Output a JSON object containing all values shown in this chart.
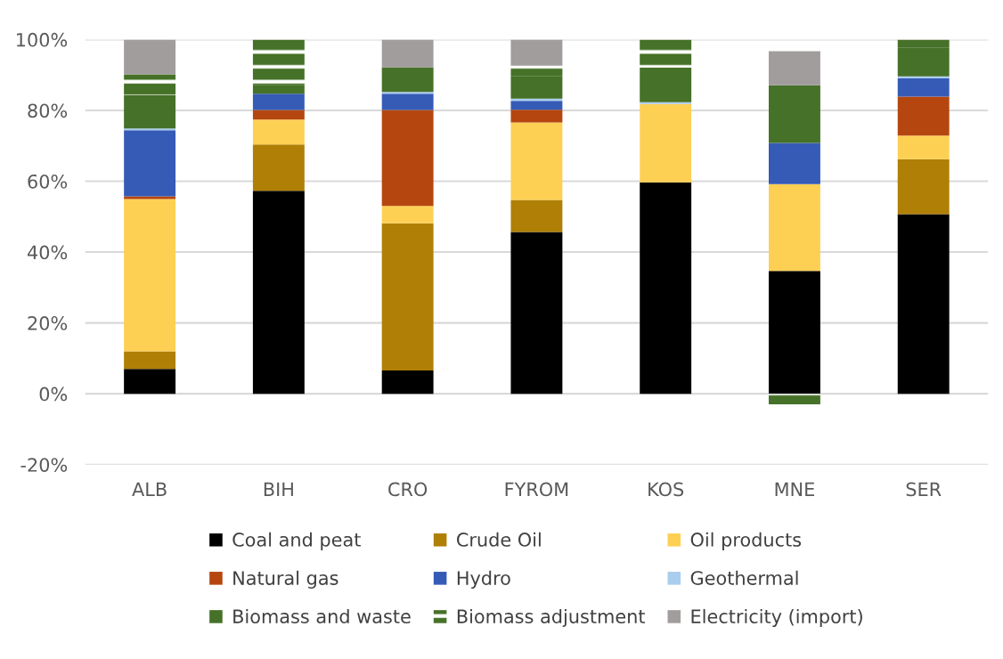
{
  "chart_data": {
    "type": "bar",
    "stacked": true,
    "categories": [
      "ALB",
      "BIH",
      "CRO",
      "FYROM",
      "KOS",
      "MNE",
      "SER"
    ],
    "ylim": [
      -20,
      100
    ],
    "yticks": [
      {
        "value": -20,
        "label": "-20%"
      },
      {
        "value": 0,
        "label": "0%"
      },
      {
        "value": 20,
        "label": "20%"
      },
      {
        "value": 40,
        "label": "40%"
      },
      {
        "value": 60,
        "label": "60%"
      },
      {
        "value": 80,
        "label": "80%"
      },
      {
        "value": 100,
        "label": "100%"
      }
    ],
    "grid": "y",
    "legend": "bottom",
    "series": [
      {
        "name": "Coal and peat",
        "color": "#000000",
        "values": [
          7,
          57.3,
          6.6,
          45.7,
          59.7,
          34.7,
          50.7
        ]
      },
      {
        "name": "Crude Oil",
        "color": "#b07f05",
        "values": [
          5,
          13.1,
          41.5,
          9,
          0,
          0,
          15.5
        ]
      },
      {
        "name": "Oil products",
        "color": "#fdd054",
        "values": [
          43,
          7,
          4.9,
          21.9,
          22.1,
          24.5,
          6.7
        ]
      },
      {
        "name": "Natural gas",
        "color": "#b6460f",
        "values": [
          0.7,
          2.7,
          27.1,
          3.6,
          0,
          0,
          11
        ]
      },
      {
        "name": "Hydro",
        "color": "#365bb6",
        "values": [
          18.7,
          4.6,
          4.6,
          2.5,
          0,
          11.6,
          5.2
        ]
      },
      {
        "name": "Geothermal",
        "color": "#a9cdef",
        "values": [
          0.5,
          0,
          0.5,
          0.6,
          0.5,
          0,
          0.5
        ]
      },
      {
        "name": "Biomass and waste",
        "color": "#467128",
        "values": [
          9.5,
          2.5,
          7,
          6.3,
          9.8,
          16.3,
          8.2
        ]
      },
      {
        "name": "Biomass adjustment",
        "color": "#467128",
        "values": [
          5.8,
          12.8,
          0,
          3,
          7.9,
          -3,
          2.2
        ]
      },
      {
        "name": "Electricity (import)",
        "color": "#a19d9c",
        "values": [
          9.8,
          0,
          7.8,
          7.4,
          0,
          9.6,
          0
        ]
      }
    ]
  }
}
